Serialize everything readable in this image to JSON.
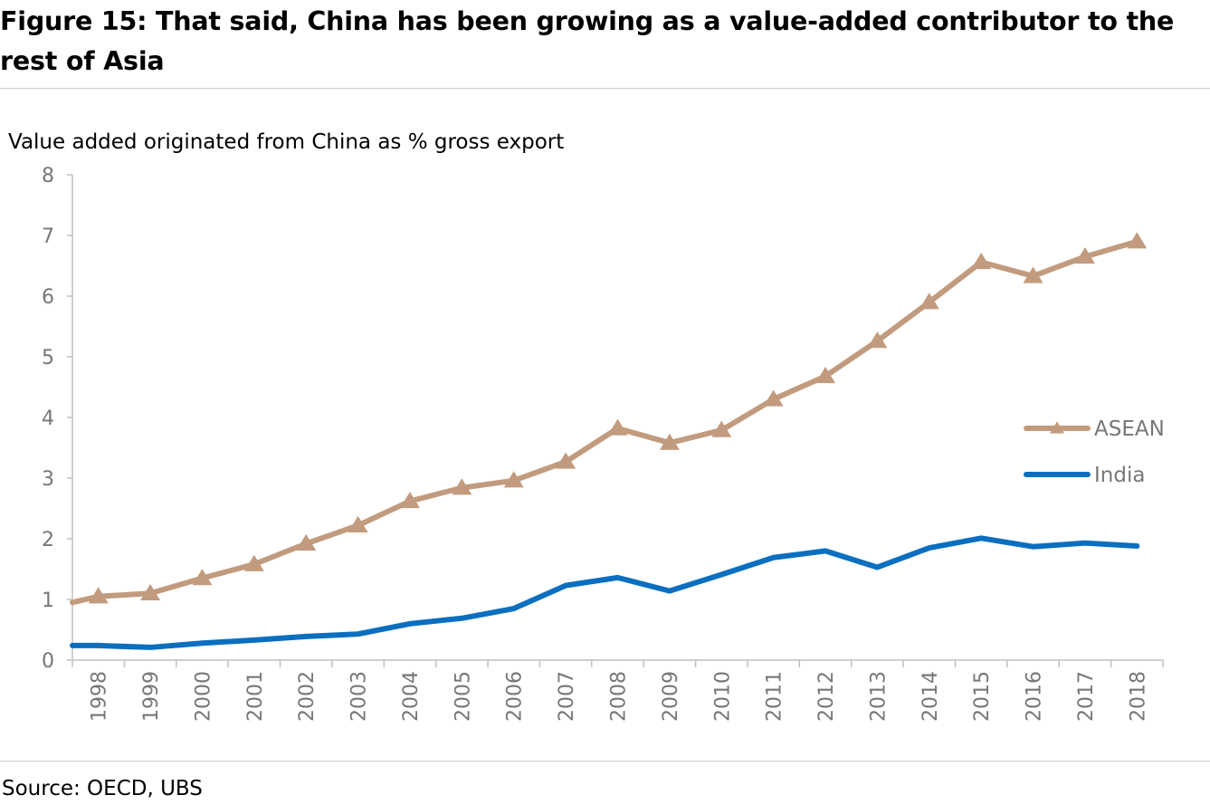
{
  "figure": {
    "title": "Figure 15: That said, China has been growing as a value-added contributor to the rest of Asia",
    "source": "Source: OECD, UBS"
  },
  "chart_data": {
    "type": "line",
    "ylabel": "Value added originated from China as % gross export",
    "ylim": [
      0,
      8
    ],
    "yticks": [
      "0",
      "1",
      "2",
      "3",
      "4",
      "5",
      "6",
      "7",
      "8"
    ],
    "categories": [
      "1998",
      "1999",
      "2000",
      "2001",
      "2002",
      "2003",
      "2004",
      "2005",
      "2006",
      "2007",
      "2008",
      "2009",
      "2010",
      "2011",
      "2012",
      "2013",
      "2014",
      "2015",
      "2016",
      "2017",
      "2018"
    ],
    "grid": false,
    "legend_position": "right",
    "series": [
      {
        "name": "ASEAN",
        "color": "#c29b7e",
        "marker": "triangle",
        "start": 0.95,
        "values": [
          1.05,
          1.1,
          1.35,
          1.58,
          1.92,
          2.22,
          2.62,
          2.84,
          2.96,
          3.27,
          3.82,
          3.58,
          3.79,
          4.3,
          4.68,
          5.26,
          5.9,
          6.56,
          6.33,
          6.65,
          6.9
        ]
      },
      {
        "name": "India",
        "color": "#0b6fc0",
        "marker": "none",
        "start": 0.24,
        "values": [
          0.24,
          0.21,
          0.28,
          0.33,
          0.39,
          0.43,
          0.6,
          0.69,
          0.85,
          1.23,
          1.36,
          1.14,
          1.41,
          1.69,
          1.8,
          1.53,
          1.85,
          2.01,
          1.87,
          1.93,
          1.88
        ]
      }
    ]
  }
}
